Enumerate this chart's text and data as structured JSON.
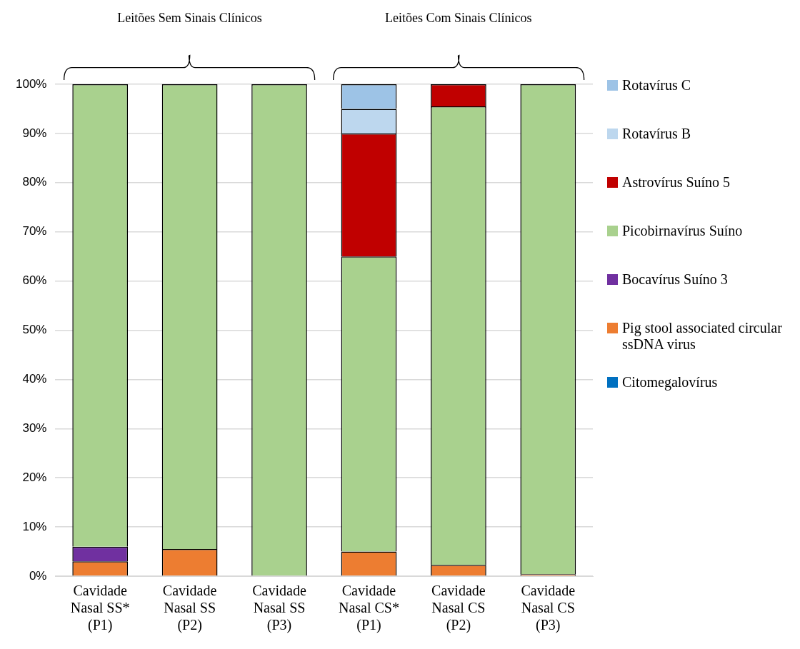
{
  "chart_data": {
    "type": "bar",
    "stacked": true,
    "categories": [
      "Cavidade\nNasal SS*\n(P1)",
      "Cavidade\nNasal SS\n(P2)",
      "Cavidade\nNasal SS\n(P3)",
      "Cavidade\nNasal CS*\n(P1)",
      "Cavidade\nNasal CS\n(P2)",
      "Cavidade\nNasal CS\n(P3)"
    ],
    "series": [
      {
        "name": "Citomegalovírus",
        "color": "#0070c0",
        "values": [
          0,
          0,
          0,
          0,
          0,
          0
        ]
      },
      {
        "name": "Pig stool associated circular ssDNA virus",
        "color": "#ed7d31",
        "values": [
          3,
          5.5,
          0,
          5,
          2.3,
          0.4
        ]
      },
      {
        "name": "Bocavírus Suíno 3",
        "color": "#7030a0",
        "values": [
          3,
          0,
          0,
          0,
          0,
          0
        ]
      },
      {
        "name": "Picobirnavírus Suíno",
        "color": "#a9d18e",
        "values": [
          94,
          94.5,
          100,
          60,
          93.2,
          99.6
        ]
      },
      {
        "name": "Astrovírus Suíno 5",
        "color": "#c00000",
        "values": [
          0,
          0,
          0,
          25,
          4.5,
          0
        ]
      },
      {
        "name": "Rotavírus B",
        "color": "#bdd7ee",
        "values": [
          0,
          0,
          0,
          5,
          0,
          0
        ]
      },
      {
        "name": "Rotavírus C",
        "color": "#9dc3e6",
        "values": [
          0,
          0,
          0,
          5,
          0,
          0
        ]
      }
    ],
    "ylim": [
      0,
      100
    ],
    "yticks": [
      {
        "value": 0,
        "label": "0%"
      },
      {
        "value": 10,
        "label": "10%"
      },
      {
        "value": 20,
        "label": "20%"
      },
      {
        "value": 30,
        "label": "30%"
      },
      {
        "value": 40,
        "label": "40%"
      },
      {
        "value": 50,
        "label": "50%"
      },
      {
        "value": 60,
        "label": "60%"
      },
      {
        "value": 70,
        "label": "70%"
      },
      {
        "value": 80,
        "label": "80%"
      },
      {
        "value": 90,
        "label": "90%"
      },
      {
        "value": 100,
        "label": "100%"
      }
    ],
    "grid": "y",
    "legend": "right",
    "annotations": [
      "Leitões Sem Sinais Clínicos",
      "Leitões Com Sinais Clínicos"
    ]
  }
}
